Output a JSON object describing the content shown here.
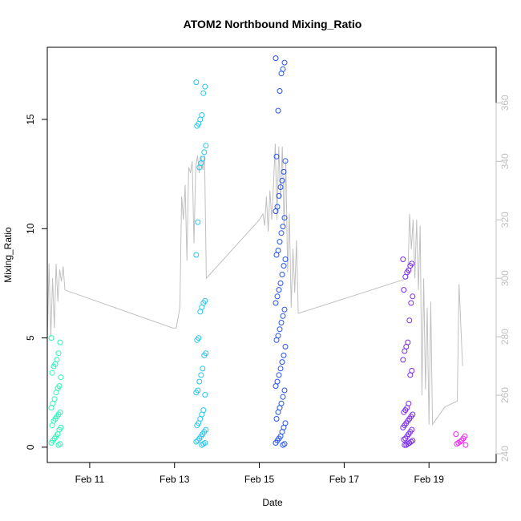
{
  "chart_data": {
    "type": "scatter",
    "title": "ATOM2 Northbound Mixing_Ratio",
    "xlabel": "Date",
    "ylabel": "Mixing_Ratio",
    "x_axis": {
      "type": "date",
      "range": [
        "2017-02-10 00:00",
        "2017-02-20 14:00"
      ],
      "ticks": [
        {
          "value": "2017-02-11",
          "label": "Feb 11"
        },
        {
          "value": "2017-02-13",
          "label": "Feb 13"
        },
        {
          "value": "2017-02-15",
          "label": "Feb 15"
        },
        {
          "value": "2017-02-17",
          "label": "Feb 17"
        },
        {
          "value": "2017-02-19",
          "label": "Feb 19"
        }
      ]
    },
    "y_axis_left": {
      "label": "Mixing_Ratio",
      "range": [
        -0.7,
        18.3
      ],
      "ticks": [
        0,
        5,
        10,
        15
      ]
    },
    "y_axis_right": {
      "range": [
        237,
        379
      ],
      "ticks": [
        240,
        260,
        280,
        300,
        320,
        340,
        360
      ],
      "color": "#c0c0c0"
    },
    "grid": false,
    "legend": "none",
    "point_colors": [
      "#2bf5b8",
      "#27c5f0",
      "#2453f2",
      "#7a2af0",
      "#ec28f0"
    ],
    "scatter_clusters": [
      {
        "x": "2017-02-10 05:00",
        "color": "#2bf5b8",
        "y": [
          5.0,
          4.8,
          4.3,
          4.0,
          3.8,
          3.7,
          3.4,
          3.2,
          2.8,
          2.7,
          2.5,
          2.2,
          2.0,
          1.8,
          1.6,
          1.5,
          1.4,
          1.3,
          1.2,
          1.0,
          0.9,
          0.8,
          0.6,
          0.5,
          0.4,
          0.3,
          0.2,
          0.15,
          0.1
        ]
      },
      {
        "x": "2017-02-13 15:00",
        "color": "#27c5f0",
        "y": [
          16.7,
          16.5,
          16.2,
          15.2,
          15.0,
          14.8,
          14.7,
          13.8,
          13.5,
          13.2,
          13.0,
          12.8,
          10.3,
          8.8,
          6.7,
          6.6,
          6.4,
          6.2,
          5.0,
          4.9,
          4.3,
          4.2,
          3.6,
          3.3,
          3.0,
          2.6,
          2.5,
          2.4,
          1.7,
          1.5,
          1.3,
          1.1,
          1.0,
          0.8,
          0.7,
          0.6,
          0.5,
          0.4,
          0.3,
          0.25,
          0.2,
          0.15,
          0.1
        ]
      },
      {
        "x": "2017-02-15 12:00",
        "color": "#2453f2",
        "y": [
          17.8,
          17.6,
          17.3,
          17.1,
          16.3,
          15.4,
          13.3,
          13.1,
          12.6,
          12.2,
          11.9,
          11.5,
          11.0,
          10.8,
          10.5,
          10.1,
          9.8,
          9.4,
          9.0,
          8.8,
          8.6,
          8.3,
          7.9,
          7.5,
          7.2,
          6.9,
          6.6,
          6.3,
          6.0,
          5.7,
          5.4,
          5.1,
          4.9,
          4.6,
          4.2,
          3.9,
          3.6,
          3.3,
          3.0,
          2.8,
          2.6,
          2.3,
          2.0,
          1.8,
          1.6,
          1.3,
          1.1,
          0.9,
          0.7,
          0.5,
          0.4,
          0.3,
          0.2,
          0.15,
          0.1
        ]
      },
      {
        "x": "2017-02-18 12:00",
        "color": "#7a2af0",
        "y": [
          8.6,
          8.4,
          8.3,
          8.1,
          8.0,
          7.8,
          7.2,
          6.9,
          6.6,
          5.8,
          4.8,
          4.6,
          4.4,
          4.0,
          3.5,
          3.3,
          2.0,
          1.8,
          1.7,
          1.6,
          1.5,
          1.4,
          1.3,
          1.2,
          1.1,
          1.0,
          0.9,
          0.8,
          0.7,
          0.6,
          0.5,
          0.4,
          0.35,
          0.3,
          0.25,
          0.2,
          0.15,
          0.1,
          0.1
        ]
      },
      {
        "x": "2017-02-19 18:00",
        "color": "#ec28f0",
        "y": [
          0.6,
          0.5,
          0.4,
          0.3,
          0.25,
          0.2,
          0.15,
          0.1
        ]
      }
    ],
    "line_series": {
      "axis": "right",
      "color": "#c0c0c0",
      "points": [
        [
          "2017-02-10 00:00",
          278
        ],
        [
          "2017-02-10 01:00",
          305
        ],
        [
          "2017-02-10 02:00",
          280
        ],
        [
          "2017-02-10 03:00",
          300
        ],
        [
          "2017-02-10 04:00",
          283
        ],
        [
          "2017-02-10 05:00",
          305
        ],
        [
          "2017-02-10 06:00",
          292
        ],
        [
          "2017-02-10 07:00",
          303
        ],
        [
          "2017-02-10 08:00",
          299
        ],
        [
          "2017-02-10 09:00",
          304
        ],
        [
          "2017-02-10 10:00",
          296
        ],
        [
          "2017-02-12 23:00",
          283
        ],
        [
          "2017-02-13 01:00",
          283
        ],
        [
          "2017-02-13 03:00",
          290
        ],
        [
          "2017-02-13 04:00",
          328
        ],
        [
          "2017-02-13 05:00",
          320
        ],
        [
          "2017-02-13 06:00",
          332
        ],
        [
          "2017-02-13 07:00",
          306
        ],
        [
          "2017-02-13 08:00",
          338
        ],
        [
          "2017-02-13 09:00",
          336
        ],
        [
          "2017-02-13 10:00",
          340
        ],
        [
          "2017-02-13 11:00",
          312
        ],
        [
          "2017-02-13 12:00",
          338
        ],
        [
          "2017-02-13 13:00",
          342
        ],
        [
          "2017-02-13 14:00",
          336
        ],
        [
          "2017-02-13 15:00",
          342
        ],
        [
          "2017-02-13 16:00",
          337
        ],
        [
          "2017-02-13 17:00",
          342
        ],
        [
          "2017-02-13 18:00",
          300
        ],
        [
          "2017-02-15 00:00",
          320
        ],
        [
          "2017-02-15 02:00",
          322
        ],
        [
          "2017-02-15 03:00",
          318
        ],
        [
          "2017-02-15 04:00",
          328
        ],
        [
          "2017-02-15 05:00",
          316
        ],
        [
          "2017-02-15 06:00",
          330
        ],
        [
          "2017-02-15 07:00",
          320
        ],
        [
          "2017-02-15 08:00",
          332
        ],
        [
          "2017-02-15 09:00",
          346
        ],
        [
          "2017-02-15 10:00",
          320
        ],
        [
          "2017-02-15 11:00",
          345
        ],
        [
          "2017-02-15 12:00",
          327
        ],
        [
          "2017-02-15 13:00",
          345
        ],
        [
          "2017-02-15 14:00",
          318
        ],
        [
          "2017-02-15 15:00",
          340
        ],
        [
          "2017-02-15 16:00",
          302
        ],
        [
          "2017-02-15 17:00",
          322
        ],
        [
          "2017-02-15 18:00",
          290
        ],
        [
          "2017-02-15 19:00",
          310
        ],
        [
          "2017-02-15 20:00",
          295
        ],
        [
          "2017-02-15 21:00",
          313
        ],
        [
          "2017-02-15 22:00",
          288
        ],
        [
          "2017-02-18 12:00",
          300
        ],
        [
          "2017-02-18 13:00",
          322
        ],
        [
          "2017-02-18 14:00",
          310
        ],
        [
          "2017-02-18 15:00",
          320
        ],
        [
          "2017-02-18 16:00",
          300
        ],
        [
          "2017-02-18 17:00",
          320
        ],
        [
          "2017-02-18 18:00",
          296
        ],
        [
          "2017-02-18 19:00",
          318
        ],
        [
          "2017-02-18 20:00",
          260
        ],
        [
          "2017-02-18 21:00",
          300
        ],
        [
          "2017-02-18 22:00",
          262
        ],
        [
          "2017-02-18 23:00",
          290
        ],
        [
          "2017-02-19 00:00",
          250
        ],
        [
          "2017-02-19 01:00",
          292
        ],
        [
          "2017-02-19 02:00",
          250
        ],
        [
          "2017-02-19 09:00",
          256
        ],
        [
          "2017-02-19 16:00",
          258
        ],
        [
          "2017-02-19 17:00",
          298
        ],
        [
          "2017-02-19 19:00",
          270
        ]
      ]
    }
  }
}
